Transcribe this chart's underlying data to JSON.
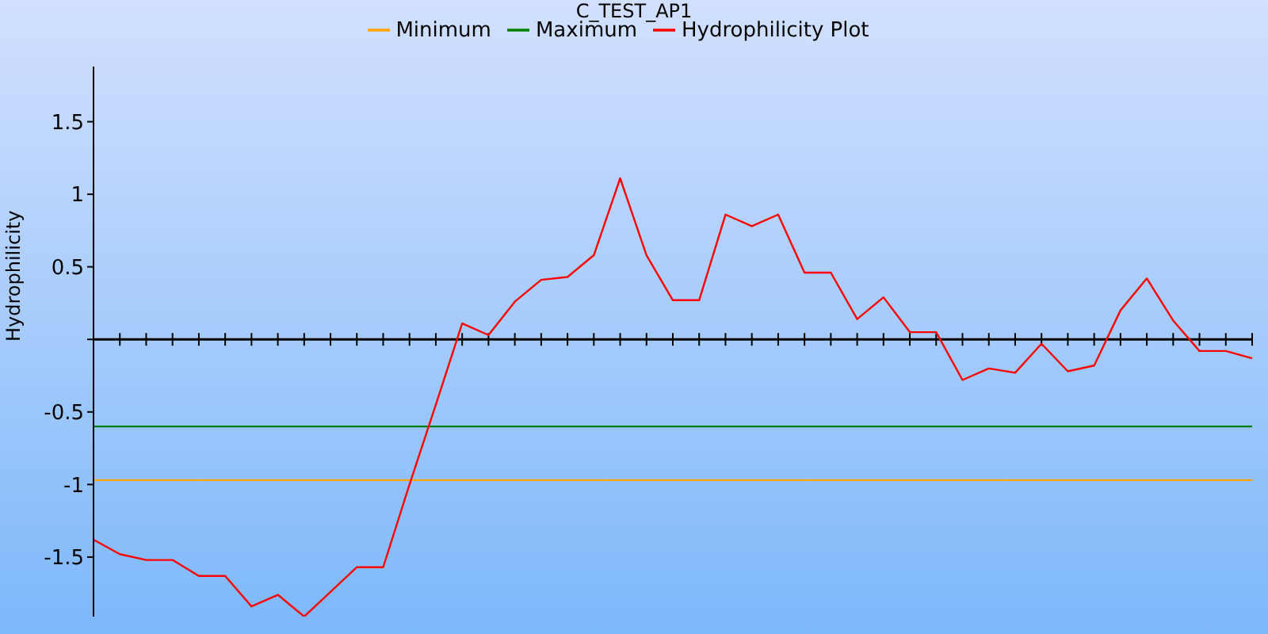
{
  "chart_data": {
    "type": "line",
    "title": "C_TEST_AP1",
    "ylabel": "Hydrophilicity",
    "categories": [
      null,
      null,
      null,
      null,
      null,
      null,
      null,
      null,
      null,
      null,
      null,
      null,
      null,
      null,
      null,
      null,
      null,
      null,
      null,
      null,
      null,
      null,
      null,
      null,
      null,
      null,
      null,
      null,
      null,
      null,
      null,
      null,
      null,
      null,
      null,
      null,
      null,
      null,
      null,
      null,
      null,
      null,
      null,
      null,
      null
    ],
    "series": [
      {
        "name": "Minimum",
        "color": "#ffa500",
        "values": [
          -0.97,
          -0.97,
          -0.97,
          -0.97,
          -0.97,
          -0.97,
          -0.97,
          -0.97,
          -0.97,
          -0.97,
          -0.97,
          -0.97,
          -0.97,
          -0.97,
          -0.97,
          -0.97,
          -0.97,
          -0.97,
          -0.97,
          -0.97,
          -0.97,
          -0.97,
          -0.97,
          -0.97,
          -0.97,
          -0.97,
          -0.97,
          -0.97,
          -0.97,
          -0.97,
          -0.97,
          -0.97,
          -0.97,
          -0.97,
          -0.97,
          -0.97,
          -0.97,
          -0.97,
          -0.97,
          -0.97,
          -0.97,
          -0.97,
          -0.97,
          -0.97,
          -0.97
        ]
      },
      {
        "name": "Maximum",
        "color": "#008000",
        "values": [
          -0.6,
          -0.6,
          -0.6,
          -0.6,
          -0.6,
          -0.6,
          -0.6,
          -0.6,
          -0.6,
          -0.6,
          -0.6,
          -0.6,
          -0.6,
          -0.6,
          -0.6,
          -0.6,
          -0.6,
          -0.6,
          -0.6,
          -0.6,
          -0.6,
          -0.6,
          -0.6,
          -0.6,
          -0.6,
          -0.6,
          -0.6,
          -0.6,
          -0.6,
          -0.6,
          -0.6,
          -0.6,
          -0.6,
          -0.6,
          -0.6,
          -0.6,
          -0.6,
          -0.6,
          -0.6,
          -0.6,
          -0.6,
          -0.6,
          -0.6,
          -0.6,
          -0.6
        ]
      },
      {
        "name": "Hydrophilicity Plot",
        "color": "#ff0000",
        "values": [
          -1.38,
          -1.48,
          -1.52,
          -1.52,
          -1.63,
          -1.63,
          -1.84,
          -1.76,
          -1.91,
          -1.74,
          -1.57,
          -1.57,
          -1.0,
          -0.45,
          0.11,
          0.03,
          0.26,
          0.41,
          0.43,
          0.58,
          1.11,
          0.58,
          0.27,
          0.27,
          0.86,
          0.78,
          0.86,
          0.46,
          0.46,
          0.14,
          0.29,
          0.05,
          0.05,
          -0.28,
          -0.2,
          -0.23,
          -0.03,
          -0.22,
          -0.18,
          0.2,
          0.42,
          0.13,
          -0.08,
          -0.08,
          -0.13
        ]
      }
    ],
    "ylim": [
      -1.91,
      1.88
    ],
    "yticks": [
      -1.5,
      -1,
      -0.5,
      {
        "value": 0,
        "label": null
      },
      0.5,
      1,
      1.5
    ],
    "ref_lines": [
      {
        "axis": "y",
        "value": 0,
        "color": "#000000"
      }
    ],
    "tick_labels": "y",
    "grid": false,
    "legend": "top",
    "marker": "none",
    "line_style": "solid"
  }
}
